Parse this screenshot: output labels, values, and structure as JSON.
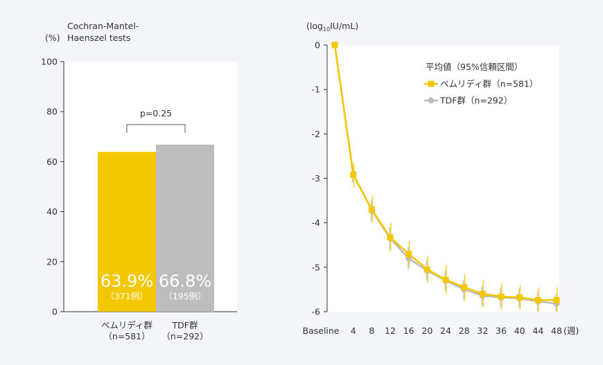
{
  "colors": {
    "bemliddy": "#f3c800",
    "tdf": "#bdbdbd",
    "axis": "#333333",
    "bracket": "#555555",
    "panel_bg": "#ffffff",
    "page_bg": "#f4f5f8"
  },
  "chart_data": [
    {
      "type": "bar",
      "test_label_line1": "Cochran-Mantel-",
      "test_label_line2": "Haenszel tests",
      "yunit": "(%)",
      "ylim": [
        0,
        100
      ],
      "yticks": [
        "0",
        "20",
        "40",
        "60",
        "80",
        "100"
      ],
      "pvalue": "p=0.25",
      "categories": [
        {
          "name": "ベムリディ群",
          "n": "（n=581）",
          "value": 63.9,
          "value_label": "63.9%",
          "count_label": "（371例）",
          "color_key": "bemliddy"
        },
        {
          "name": "TDF群",
          "n": "（n=292）",
          "value": 66.8,
          "value_label": "66.8%",
          "count_label": "（195例）",
          "color_key": "tdf"
        }
      ]
    },
    {
      "type": "line",
      "yunit_prefix": "(log",
      "yunit_sub": "10",
      "yunit_suffix": "IU/mL)",
      "ylim": [
        -6,
        0
      ],
      "yticks": [
        "0",
        "-1",
        "-2",
        "-3",
        "-4",
        "-5",
        "-6"
      ],
      "x": [
        0,
        4,
        8,
        12,
        16,
        20,
        24,
        28,
        32,
        36,
        40,
        44,
        48
      ],
      "xticks": [
        "Baseline",
        "4",
        "8",
        "12",
        "16",
        "20",
        "24",
        "28",
        "32",
        "36",
        "40",
        "44",
        "48"
      ],
      "xunit": "(週)",
      "legend_title": "平均値（95%信頼区間）",
      "series": [
        {
          "name": "ベムリディ群（n=581）",
          "color_key": "bemliddy",
          "marker": "square",
          "values": [
            0,
            -2.92,
            -3.7,
            -4.33,
            -4.7,
            -5.05,
            -5.28,
            -5.45,
            -5.6,
            -5.66,
            -5.68,
            -5.74,
            -5.74
          ],
          "ci": [
            [
              0,
              0
            ],
            [
              -3.2,
              -2.65
            ],
            [
              -4.0,
              -3.4
            ],
            [
              -4.65,
              -4.0
            ],
            [
              -5.0,
              -4.4
            ],
            [
              -5.35,
              -4.75
            ],
            [
              -5.6,
              -4.95
            ],
            [
              -5.75,
              -5.15
            ],
            [
              -5.9,
              -5.3
            ],
            [
              -5.95,
              -5.36
            ],
            [
              -5.95,
              -5.4
            ],
            [
              -6.0,
              -5.45
            ],
            [
              -6.0,
              -5.45
            ]
          ]
        },
        {
          "name": "TDF群（n=292）",
          "color_key": "tdf",
          "marker": "circle",
          "values": [
            0,
            -2.9,
            -3.72,
            -4.35,
            -4.8,
            -5.08,
            -5.3,
            -5.5,
            -5.64,
            -5.68,
            -5.7,
            -5.77,
            -5.82
          ],
          "ci": [
            [
              0,
              0
            ],
            [
              -3.1,
              -2.7
            ],
            [
              -3.95,
              -3.5
            ],
            [
              -4.6,
              -4.1
            ],
            [
              -5.05,
              -4.55
            ],
            [
              -5.3,
              -4.85
            ],
            [
              -5.52,
              -5.08
            ],
            [
              -5.72,
              -5.28
            ],
            [
              -5.86,
              -5.42
            ],
            [
              -5.9,
              -5.46
            ],
            [
              -5.92,
              -5.48
            ],
            [
              -5.98,
              -5.55
            ],
            [
              -6.0,
              -5.6
            ]
          ]
        }
      ]
    }
  ]
}
